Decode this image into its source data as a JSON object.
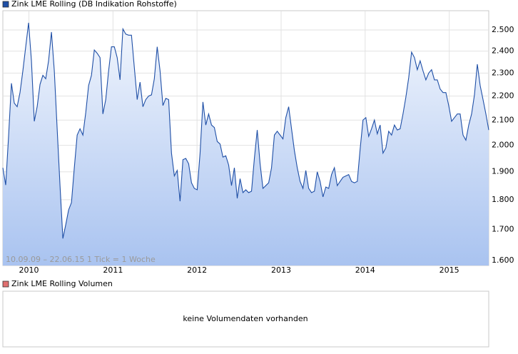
{
  "chart_data": [
    {
      "type": "area",
      "series": [
        {
          "name": "Zink LME Rolling (DB Indikation Rohstoffe)",
          "color": "#1f4fa6",
          "values": [
            1915,
            1852,
            2035,
            2255,
            2170,
            2155,
            2215,
            2310,
            2420,
            2535,
            2355,
            2095,
            2155,
            2250,
            2290,
            2275,
            2355,
            2490,
            2310,
            2065,
            1850,
            1670,
            1715,
            1765,
            1790,
            1915,
            2040,
            2065,
            2040,
            2130,
            2245,
            2290,
            2405,
            2390,
            2370,
            2125,
            2185,
            2310,
            2420,
            2420,
            2370,
            2270,
            2505,
            2480,
            2475,
            2475,
            2325,
            2185,
            2260,
            2155,
            2185,
            2200,
            2205,
            2275,
            2420,
            2310,
            2160,
            2190,
            2185,
            1970,
            1885,
            1905,
            1795,
            1945,
            1950,
            1930,
            1860,
            1840,
            1835,
            1970,
            2175,
            2080,
            2125,
            2080,
            2070,
            2015,
            2005,
            1955,
            1960,
            1925,
            1850,
            1915,
            1805,
            1875,
            1825,
            1835,
            1825,
            1830,
            1950,
            2060,
            1930,
            1840,
            1850,
            1860,
            1915,
            2040,
            2055,
            2040,
            2025,
            2110,
            2155,
            2065,
            1980,
            1915,
            1865,
            1840,
            1905,
            1840,
            1825,
            1830,
            1900,
            1865,
            1810,
            1845,
            1840,
            1890,
            1915,
            1850,
            1865,
            1880,
            1885,
            1890,
            1865,
            1860,
            1865,
            1985,
            2100,
            2110,
            2035,
            2065,
            2100,
            2045,
            2080,
            1970,
            1990,
            2055,
            2040,
            2080,
            2060,
            2065,
            2125,
            2195,
            2280,
            2395,
            2370,
            2315,
            2355,
            2310,
            2270,
            2300,
            2315,
            2270,
            2270,
            2230,
            2215,
            2215,
            2160,
            2095,
            2110,
            2125,
            2125,
            2040,
            2020,
            2080,
            2125,
            2205,
            2340,
            2245,
            2185,
            2125,
            2060
          ]
        }
      ],
      "x": [
        2009.69,
        2009.724,
        2009.758,
        2009.792,
        2009.826,
        2009.86,
        2009.894,
        2009.928,
        2009.962,
        2009.996,
        2010.03,
        2010.064,
        2010.098,
        2010.132,
        2010.166,
        2010.2,
        2010.234,
        2010.268,
        2010.302,
        2010.336,
        2010.37,
        2010.404,
        2010.438,
        2010.472,
        2010.506,
        2010.54,
        2010.574,
        2010.608,
        2010.642,
        2010.676,
        2010.71,
        2010.744,
        2010.778,
        2010.812,
        2010.846,
        2010.88,
        2010.914,
        2010.948,
        2010.982,
        2011.016,
        2011.05,
        2011.084,
        2011.118,
        2011.152,
        2011.186,
        2011.22,
        2011.254,
        2011.288,
        2011.322,
        2011.356,
        2011.39,
        2011.424,
        2011.458,
        2011.492,
        2011.526,
        2011.56,
        2011.594,
        2011.628,
        2011.662,
        2011.696,
        2011.73,
        2011.764,
        2011.798,
        2011.832,
        2011.866,
        2011.9,
        2011.934,
        2011.968,
        2012.002,
        2012.036,
        2012.07,
        2012.104,
        2012.138,
        2012.172,
        2012.206,
        2012.24,
        2012.274,
        2012.308,
        2012.342,
        2012.376,
        2012.41,
        2012.444,
        2012.478,
        2012.512,
        2012.546,
        2012.58,
        2012.614,
        2012.648,
        2012.682,
        2012.716,
        2012.75,
        2012.784,
        2012.818,
        2012.852,
        2012.886,
        2012.92,
        2012.954,
        2012.988,
        2013.022,
        2013.056,
        2013.09,
        2013.124,
        2013.158,
        2013.192,
        2013.226,
        2013.26,
        2013.294,
        2013.328,
        2013.362,
        2013.396,
        2013.43,
        2013.464,
        2013.498,
        2013.532,
        2013.566,
        2013.6,
        2013.634,
        2013.668,
        2013.702,
        2013.736,
        2013.77,
        2013.804,
        2013.838,
        2013.872,
        2013.906,
        2013.94,
        2013.974,
        2014.008,
        2014.042,
        2014.076,
        2014.11,
        2014.144,
        2014.178,
        2014.212,
        2014.246,
        2014.28,
        2014.314,
        2014.348,
        2014.382,
        2014.416,
        2014.45,
        2014.484,
        2014.518,
        2014.552,
        2014.586,
        2014.62,
        2014.654,
        2014.688,
        2014.722,
        2014.756,
        2014.79,
        2014.824,
        2014.858,
        2014.892,
        2014.926,
        2014.96,
        2014.994,
        2015.028,
        2015.062,
        2015.096,
        2015.13,
        2015.164,
        2015.198,
        2015.232,
        2015.266,
        2015.3,
        2015.334,
        2015.368,
        2015.402,
        2015.436,
        2015.47
      ],
      "xlim": [
        2009.69,
        2015.47
      ],
      "xticks": [
        2010,
        2011,
        2012,
        2013,
        2014,
        2015
      ],
      "ylim": [
        1585,
        2595
      ],
      "log_scale": true,
      "yticks": [
        {
          "value": 1600,
          "label": "1.600"
        },
        {
          "value": 1700,
          "label": "1.700"
        },
        {
          "value": 1800,
          "label": "1.800"
        },
        {
          "value": 1900,
          "label": "1.900"
        },
        {
          "value": 2000,
          "label": "2.000"
        },
        {
          "value": 2100,
          "label": "2.100"
        },
        {
          "value": 2200,
          "label": "2.200"
        },
        {
          "value": 2300,
          "label": "2.300"
        },
        {
          "value": 2400,
          "label": "2.400"
        },
        {
          "value": 2500,
          "label": "2.500"
        }
      ],
      "grid": true,
      "annotation": "10.09.09 – 22.06.15   1 Tick = 1 Woche"
    },
    {
      "type": "bar",
      "series": [
        {
          "name": "Zink LME Rolling Volumen",
          "color": "#e07070",
          "values": []
        }
      ],
      "annotation": "keine Volumendaten vorhanden"
    }
  ]
}
